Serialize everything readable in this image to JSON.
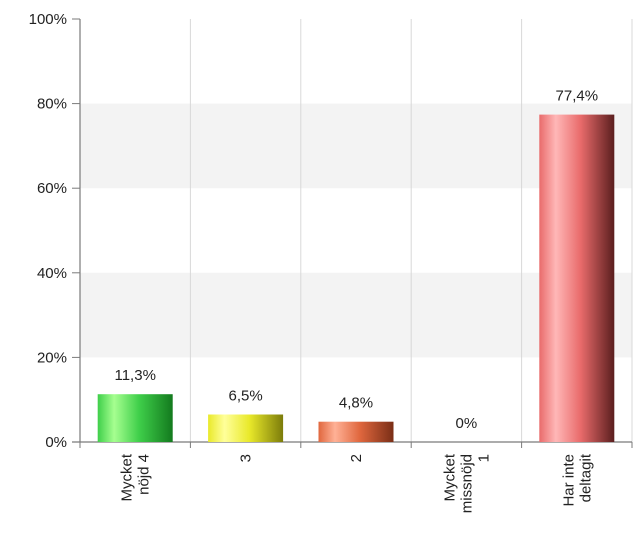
{
  "chart_data": {
    "type": "bar",
    "title": "",
    "xlabel": "",
    "ylabel": "",
    "ylim": [
      0,
      100
    ],
    "yticks": [
      "0%",
      "20%",
      "40%",
      "60%",
      "80%",
      "100%"
    ],
    "ytick_values": [
      0,
      20,
      40,
      60,
      80,
      100
    ],
    "grid": true,
    "legend": "none",
    "categories": [
      [
        "Mycket",
        "nöjd 4"
      ],
      [
        "3"
      ],
      [
        "2"
      ],
      [
        "Mycket",
        "missnöjd",
        "1"
      ],
      [
        "Har inte",
        "deltagit"
      ]
    ],
    "values": [
      11.3,
      6.5,
      4.8,
      0,
      77.4
    ],
    "value_labels": [
      "11,3%",
      "6,5%",
      "4,8%",
      "0%",
      "77,4%"
    ],
    "colors": [
      {
        "light": "#a6ff90",
        "mid": "#3fcf4a",
        "dark": "#137a1e"
      },
      {
        "light": "#ffff9a",
        "mid": "#e9e92a",
        "dark": "#7c7c0a"
      },
      {
        "light": "#ffb196",
        "mid": "#e0673e",
        "dark": "#7a2e16"
      },
      {
        "light": "#d9d9d9",
        "mid": "#aaaaaa",
        "dark": "#666666"
      },
      {
        "light": "#ffb7b7",
        "mid": "#e96b6b",
        "dark": "#5a1e1e"
      }
    ]
  }
}
